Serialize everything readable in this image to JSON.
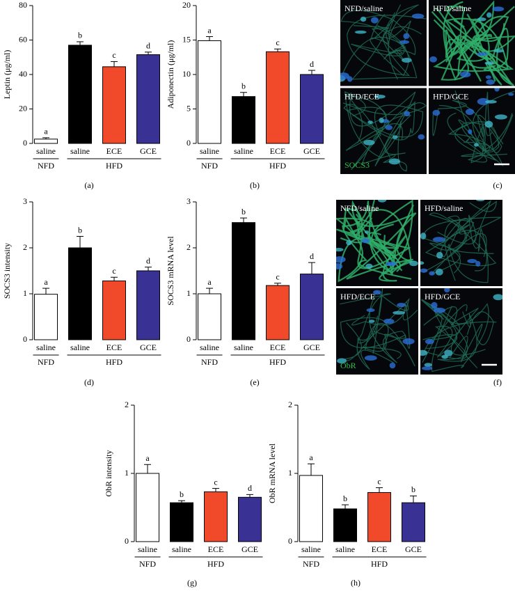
{
  "chart_data": [
    {
      "type": "bar",
      "panel_label": "(a)",
      "y_label": "Leptin (μg/ml)",
      "ylim": [
        0,
        80
      ],
      "yticks": [
        0,
        20,
        40,
        60,
        80
      ],
      "groups": [
        {
          "name": "NFD",
          "categories": [
            "saline"
          ]
        },
        {
          "name": "HFD",
          "categories": [
            "saline",
            "ECE",
            "GCE"
          ]
        }
      ],
      "values": [
        2.5,
        57,
        44.5,
        51.5
      ],
      "errors": [
        0.8,
        2,
        3,
        1.5
      ],
      "letters": [
        "a",
        "b",
        "c",
        "d"
      ],
      "colors": [
        "#ffffff",
        "#000000",
        "#f04a2a",
        "#3a3194"
      ]
    },
    {
      "type": "bar",
      "panel_label": "(b)",
      "y_label": "Adiponectin (μg/ml)",
      "ylim": [
        0,
        20
      ],
      "yticks": [
        0,
        5,
        10,
        15,
        20
      ],
      "groups": [
        {
          "name": "NFD",
          "categories": [
            "saline"
          ]
        },
        {
          "name": "HFD",
          "categories": [
            "saline",
            "ECE",
            "GCE"
          ]
        }
      ],
      "values": [
        14.9,
        6.8,
        13.3,
        10.0
      ],
      "errors": [
        0.6,
        0.6,
        0.4,
        0.6
      ],
      "letters": [
        "a",
        "b",
        "c",
        "d"
      ],
      "colors": [
        "#ffffff",
        "#000000",
        "#f04a2a",
        "#3a3194"
      ]
    },
    {
      "type": "bar",
      "panel_label": "(d)",
      "y_label": "SOCS3 intensity",
      "ylim": [
        0,
        3
      ],
      "yticks": [
        0,
        1,
        2,
        3
      ],
      "groups": [
        {
          "name": "NFD",
          "categories": [
            "saline"
          ]
        },
        {
          "name": "HFD",
          "categories": [
            "saline",
            "ECE",
            "GCE"
          ]
        }
      ],
      "values": [
        0.99,
        2.0,
        1.28,
        1.5
      ],
      "errors": [
        0.13,
        0.25,
        0.08,
        0.08
      ],
      "letters": [
        "a",
        "b",
        "c",
        "d"
      ],
      "colors": [
        "#ffffff",
        "#000000",
        "#f04a2a",
        "#3a3194"
      ]
    },
    {
      "type": "bar",
      "panel_label": "(e)",
      "y_label": "SOCS3 mRNA level",
      "ylim": [
        0,
        3
      ],
      "yticks": [
        0,
        1,
        2,
        3
      ],
      "groups": [
        {
          "name": "NFD",
          "categories": [
            "saline"
          ]
        },
        {
          "name": "HFD",
          "categories": [
            "saline",
            "ECE",
            "GCE"
          ]
        }
      ],
      "values": [
        1.0,
        2.55,
        1.18,
        1.43
      ],
      "errors": [
        0.12,
        0.1,
        0.05,
        0.25
      ],
      "letters": [
        "a",
        "b",
        "c",
        "d"
      ],
      "colors": [
        "#ffffff",
        "#000000",
        "#f04a2a",
        "#3a3194"
      ]
    },
    {
      "type": "bar",
      "panel_label": "(g)",
      "y_label": "ObR intensity",
      "ylim": [
        0,
        2
      ],
      "yticks": [
        0,
        1,
        2
      ],
      "groups": [
        {
          "name": "NFD",
          "categories": [
            "saline"
          ]
        },
        {
          "name": "HFD",
          "categories": [
            "saline",
            "ECE",
            "GCE"
          ]
        }
      ],
      "values": [
        1.0,
        0.57,
        0.73,
        0.65
      ],
      "errors": [
        0.13,
        0.03,
        0.05,
        0.04
      ],
      "letters": [
        "a",
        "b",
        "c",
        "d"
      ],
      "colors": [
        "#ffffff",
        "#000000",
        "#f04a2a",
        "#3a3194"
      ]
    },
    {
      "type": "bar",
      "panel_label": "(h)",
      "y_label": "ObR mRNA level",
      "ylim": [
        0,
        2
      ],
      "yticks": [
        0,
        1,
        2
      ],
      "groups": [
        {
          "name": "NFD",
          "categories": [
            "saline"
          ]
        },
        {
          "name": "HFD",
          "categories": [
            "saline",
            "ECE",
            "GCE"
          ]
        }
      ],
      "values": [
        0.97,
        0.48,
        0.72,
        0.57
      ],
      "errors": [
        0.17,
        0.06,
        0.07,
        0.1
      ],
      "letters": [
        "a",
        "b",
        "c",
        "b"
      ],
      "colors": [
        "#ffffff",
        "#000000",
        "#f04a2a",
        "#3a3194"
      ]
    }
  ],
  "image_panels": [
    {
      "panel_label": "(c)",
      "stain": "SOCS3",
      "quadrants": [
        "NFD/saline",
        "HFD/saline",
        "HFD/ECE",
        "HFD/GCE"
      ]
    },
    {
      "panel_label": "(f)",
      "stain": "ObR",
      "quadrants": [
        "NFD/saline",
        "HFD/saline",
        "HFD/ECE",
        "HFD/GCE"
      ]
    }
  ]
}
